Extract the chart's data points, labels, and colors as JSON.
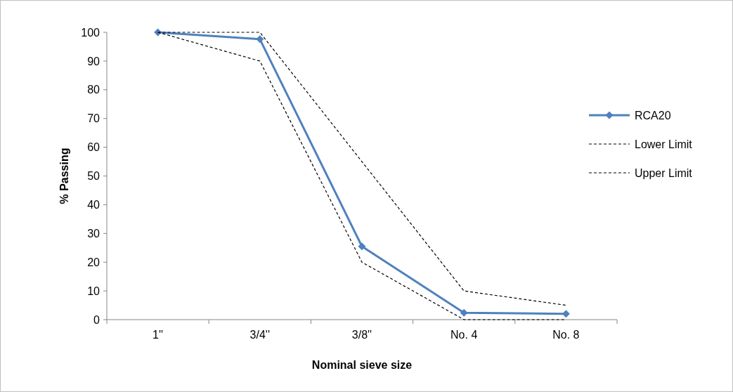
{
  "chart_data": {
    "type": "line",
    "xlabel": "Nominal sieve size",
    "ylabel": "% Passing",
    "categories": [
      "1''",
      "3/4''",
      "3/8''",
      "No. 4",
      "No. 8"
    ],
    "ylim": [
      0,
      100
    ],
    "yticks": [
      0,
      10,
      20,
      30,
      40,
      50,
      60,
      70,
      80,
      90,
      100
    ],
    "grid": false,
    "legend": "right",
    "series": [
      {
        "name": "RCA20",
        "color": "#4f81bd",
        "values": [
          100,
          97.6,
          25.5,
          2.4,
          2.0
        ],
        "marker": "diamond",
        "line_style": "solid"
      },
      {
        "name": "Lower Limit",
        "color": "#000000",
        "values": [
          100,
          90,
          20,
          0,
          0
        ],
        "marker": "none",
        "line_style": "dashed"
      },
      {
        "name": "Upper Limit",
        "color": "#000000",
        "values": [
          100,
          100,
          55,
          10,
          5
        ],
        "marker": "none",
        "line_style": "dashed"
      }
    ]
  }
}
